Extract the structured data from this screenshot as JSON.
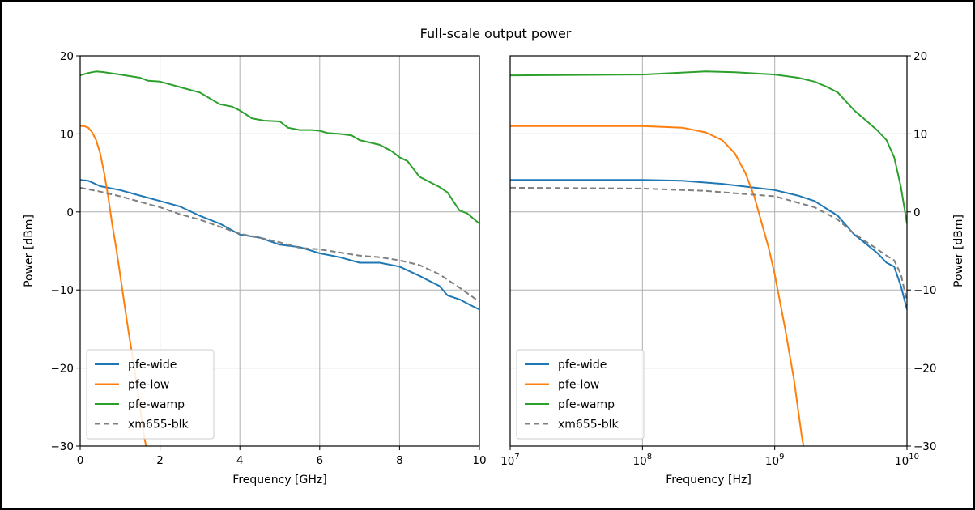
{
  "figure": {
    "title": "Full-scale output power"
  },
  "colors": {
    "pfe-wide": "#1f77b4",
    "pfe-low": "#ff7f0e",
    "pfe-wamp": "#2ca02c",
    "xm655-blk": "#7f7f7f",
    "grid": "#b0b0b0"
  },
  "chart_data": [
    {
      "type": "line",
      "xlabel": "Frequency [GHz]",
      "ylabel": "Power [dBm]",
      "xlim": [
        0,
        10
      ],
      "ylim": [
        -30,
        20
      ],
      "x_ticks": [
        0,
        2,
        4,
        6,
        8,
        10
      ],
      "y_ticks": [
        -30,
        -20,
        -10,
        0,
        10,
        20
      ],
      "grid": true,
      "legend": "lower-left",
      "series": [
        {
          "name": "pfe-wide",
          "color": "#1f77b4",
          "dash": "solid",
          "x": [
            0,
            0.2,
            0.5,
            1.0,
            1.5,
            2.0,
            2.5,
            3.0,
            3.5,
            4.0,
            4.5,
            5.0,
            5.5,
            6.0,
            6.5,
            7.0,
            7.5,
            8.0,
            8.5,
            9.0,
            9.2,
            9.5,
            9.8,
            10.0
          ],
          "y": [
            4.1,
            4.0,
            3.3,
            2.8,
            2.1,
            1.4,
            0.7,
            -0.5,
            -1.5,
            -2.9,
            -3.3,
            -4.2,
            -4.5,
            -5.3,
            -5.8,
            -6.5,
            -6.5,
            -7.0,
            -8.2,
            -9.5,
            -10.7,
            -11.2,
            -12.0,
            -12.5
          ]
        },
        {
          "name": "pfe-low",
          "color": "#ff7f0e",
          "dash": "solid",
          "x": [
            0,
            0.1,
            0.2,
            0.3,
            0.4,
            0.5,
            0.6,
            0.7,
            0.8,
            0.9,
            1.0,
            1.1,
            1.2,
            1.3,
            1.4,
            1.5,
            1.6,
            1.65
          ],
          "y": [
            11.0,
            11.0,
            10.8,
            10.2,
            9.2,
            7.5,
            5.0,
            2.0,
            -1.5,
            -4.6,
            -8.0,
            -11.5,
            -15.0,
            -18.2,
            -21.5,
            -25.0,
            -28.7,
            -30.0
          ]
        },
        {
          "name": "pfe-wamp",
          "color": "#2ca02c",
          "dash": "solid",
          "x": [
            0,
            0.2,
            0.4,
            0.6,
            1.0,
            1.5,
            1.7,
            2.0,
            2.5,
            3.0,
            3.5,
            3.8,
            4.0,
            4.3,
            4.6,
            5.0,
            5.2,
            5.5,
            5.8,
            6.0,
            6.2,
            6.5,
            6.8,
            7.0,
            7.5,
            7.8,
            8.0,
            8.2,
            8.5,
            9.0,
            9.2,
            9.5,
            9.7,
            10.0
          ],
          "y": [
            17.5,
            17.8,
            18.0,
            17.9,
            17.6,
            17.2,
            16.8,
            16.7,
            16.0,
            15.3,
            13.8,
            13.5,
            13.0,
            12.0,
            11.7,
            11.6,
            10.8,
            10.5,
            10.5,
            10.4,
            10.1,
            10.0,
            9.8,
            9.2,
            8.6,
            7.8,
            7.0,
            6.5,
            4.5,
            3.2,
            2.5,
            0.2,
            -0.2,
            -1.5
          ]
        },
        {
          "name": "xm655-blk",
          "color": "#7f7f7f",
          "dash": "dashed",
          "x": [
            0,
            0.5,
            1.0,
            1.5,
            2.0,
            2.5,
            3.0,
            3.5,
            4.0,
            4.5,
            5.0,
            5.5,
            6.0,
            6.5,
            7.0,
            7.5,
            8.0,
            8.5,
            9.0,
            9.5,
            10.0
          ],
          "y": [
            3.1,
            2.6,
            2.0,
            1.3,
            0.6,
            -0.3,
            -1.0,
            -1.9,
            -2.8,
            -3.3,
            -3.9,
            -4.6,
            -4.8,
            -5.2,
            -5.6,
            -5.8,
            -6.2,
            -6.8,
            -8.0,
            -9.7,
            -11.5
          ]
        }
      ]
    },
    {
      "type": "line",
      "xlabel": "Frequency [Hz]",
      "ylabel": "Power [dBm]",
      "xscale": "log",
      "xlim": [
        10000000,
        10000000000
      ],
      "ylim": [
        -30,
        20
      ],
      "x_ticks": [
        10000000,
        100000000,
        1000000000,
        10000000000
      ],
      "x_tick_labels": [
        {
          "base": "10",
          "exp": "7"
        },
        {
          "base": "10",
          "exp": "8"
        },
        {
          "base": "10",
          "exp": "9"
        },
        {
          "base": "10",
          "exp": "10"
        }
      ],
      "y_ticks": [
        -30,
        -20,
        -10,
        0,
        10,
        20
      ],
      "y_axis_side": "right",
      "grid": true,
      "legend": "lower-left",
      "series": [
        {
          "name": "pfe-wide",
          "color": "#1f77b4",
          "dash": "solid",
          "x": [
            10000000,
            100000000,
            200000000,
            400000000,
            1000000000,
            1500000000,
            2000000000,
            3000000000,
            4000000000,
            5000000000,
            6000000000,
            7000000000,
            8000000000,
            9000000000,
            10000000000
          ],
          "y": [
            4.1,
            4.1,
            4.0,
            3.6,
            2.8,
            2.1,
            1.4,
            -0.5,
            -2.9,
            -4.2,
            -5.3,
            -6.5,
            -7.0,
            -9.5,
            -12.5
          ]
        },
        {
          "name": "pfe-low",
          "color": "#ff7f0e",
          "dash": "solid",
          "x": [
            10000000,
            100000000,
            200000000,
            300000000,
            400000000,
            500000000,
            600000000,
            700000000,
            800000000,
            900000000,
            1000000000,
            1200000000,
            1400000000,
            1600000000,
            1650000000
          ],
          "y": [
            11.0,
            11.0,
            10.8,
            10.2,
            9.2,
            7.5,
            5.0,
            2.0,
            -1.5,
            -4.6,
            -8.0,
            -15.0,
            -21.5,
            -28.7,
            -30.0
          ]
        },
        {
          "name": "pfe-wamp",
          "color": "#2ca02c",
          "dash": "solid",
          "x": [
            10000000,
            100000000,
            300000000,
            500000000,
            1000000000,
            1500000000,
            2000000000,
            2500000000,
            3000000000,
            4000000000,
            5000000000,
            6000000000,
            7000000000,
            8000000000,
            9000000000,
            10000000000
          ],
          "y": [
            17.5,
            17.6,
            18.0,
            17.9,
            17.6,
            17.2,
            16.7,
            16.0,
            15.3,
            13.0,
            11.6,
            10.4,
            9.2,
            7.0,
            3.2,
            -1.5
          ]
        },
        {
          "name": "xm655-blk",
          "color": "#7f7f7f",
          "dash": "dashed",
          "x": [
            10000000,
            100000000,
            300000000,
            500000000,
            1000000000,
            2000000000,
            3000000000,
            4000000000,
            5000000000,
            6000000000,
            7000000000,
            8000000000,
            9000000000,
            10000000000
          ],
          "y": [
            3.1,
            3.0,
            2.7,
            2.4,
            2.0,
            0.6,
            -1.0,
            -2.8,
            -3.9,
            -4.8,
            -5.6,
            -6.2,
            -8.0,
            -11.5
          ]
        }
      ]
    }
  ]
}
